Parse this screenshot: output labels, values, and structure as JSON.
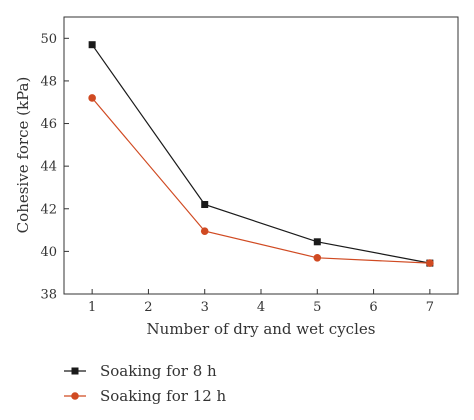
{
  "chart_data": {
    "type": "line",
    "xlabel": "Number of dry and wet cycles",
    "ylabel": "Cohesive force (kPa)",
    "xlim": [
      0.5,
      7.5
    ],
    "ylim": [
      38,
      51
    ],
    "xticks": [
      1,
      2,
      3,
      4,
      5,
      6,
      7
    ],
    "yticks": [
      38,
      40,
      42,
      44,
      46,
      48,
      50
    ],
    "grid": false,
    "legend_position": "bottom-left, below plot",
    "series": [
      {
        "name": "Soaking for 8 h",
        "color": "#1a1a1a",
        "marker": "square",
        "x": [
          1,
          3,
          5,
          7
        ],
        "y": [
          49.7,
          42.2,
          40.45,
          39.45
        ]
      },
      {
        "name": "Soaking for 12 h",
        "color": "#d04a22",
        "marker": "circle",
        "x": [
          1,
          3,
          5,
          7
        ],
        "y": [
          47.2,
          40.95,
          39.7,
          39.45
        ]
      }
    ]
  }
}
